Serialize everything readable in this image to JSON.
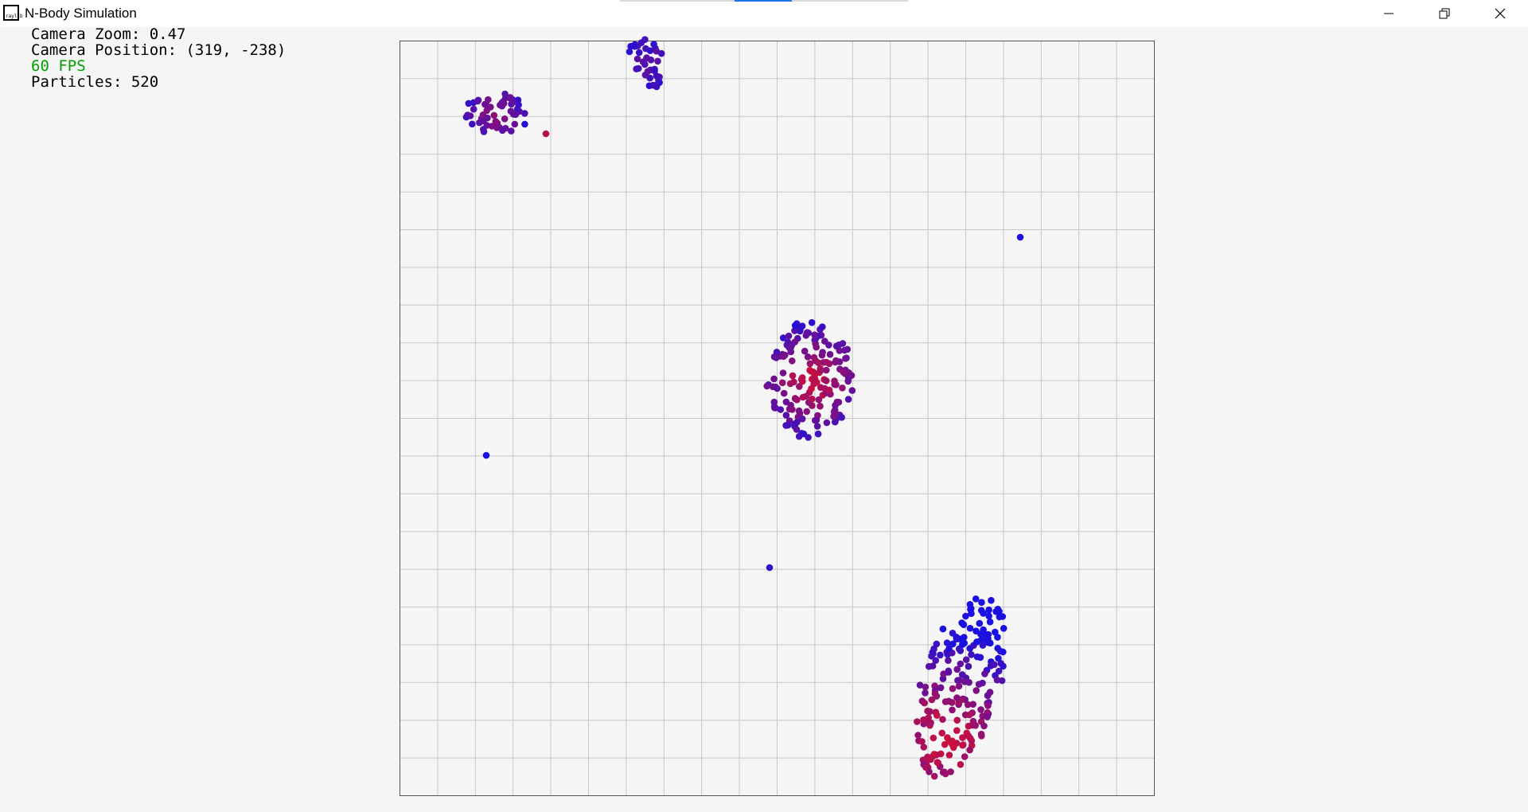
{
  "window": {
    "title": "N-Body Simulation",
    "icon_label": "raylib",
    "icon": "raylib-logo-icon",
    "controls": [
      "minimize-icon",
      "restore-icon",
      "close-icon"
    ]
  },
  "hud": {
    "zoom_text": "Camera Zoom: 0.47",
    "position_text": "Camera Position: (319, -238)",
    "fps_text": "60 FPS",
    "particles_text": "Particles: 520"
  },
  "colors": {
    "background": "#f5f5f5",
    "grid": "#c8c8c8",
    "border": "#555555",
    "fps": "#00a000",
    "particle_cold": "#1a10e0",
    "particle_hot": "#c81040"
  }
}
